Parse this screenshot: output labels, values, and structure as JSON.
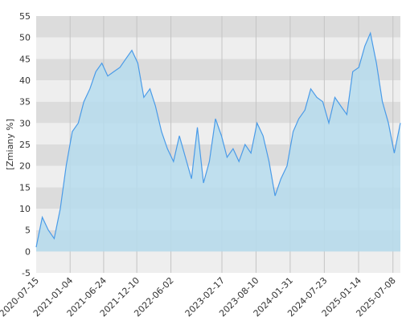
{
  "chart_data": {
    "type": "area",
    "ylabel": "[Zmiany %]",
    "ylim": [
      -5,
      55
    ],
    "y_ticks": [
      -5,
      0,
      5,
      10,
      15,
      20,
      25,
      30,
      35,
      40,
      45,
      50,
      55
    ],
    "x_tick_labels": [
      "2020-07-15",
      "2021-01-04",
      "2021-06-24",
      "2021-12-10",
      "2022-06-02",
      "2023-02-17",
      "2023-08-10",
      "2024-01-31",
      "2024-07-23",
      "2025-01-14",
      "2025-07-08"
    ],
    "grid": true,
    "colors": {
      "line": "#4a9be8",
      "area": "#b6dced",
      "band_dark": "#dcdcdc",
      "band_light": "#eeeeee"
    },
    "series": [
      {
        "x": [
          "2020-07-15",
          "2020-08-15",
          "2020-09-15",
          "2020-10-15",
          "2020-11-15",
          "2020-12-15",
          "2021-01-15",
          "2021-02-15",
          "2021-03-15",
          "2021-04-15",
          "2021-05-15",
          "2021-06-15",
          "2021-07-15",
          "2021-08-15",
          "2021-09-15",
          "2021-10-15",
          "2021-11-15",
          "2021-12-15",
          "2022-01-15",
          "2022-02-15",
          "2022-03-15",
          "2022-04-15",
          "2022-05-15",
          "2022-06-15",
          "2022-07-15",
          "2022-08-15",
          "2022-09-15",
          "2022-10-15",
          "2022-11-15",
          "2022-12-15",
          "2023-01-15",
          "2023-02-15",
          "2023-03-15",
          "2023-04-15",
          "2023-05-15",
          "2023-06-15",
          "2023-07-15",
          "2023-08-15",
          "2023-09-15",
          "2023-10-15",
          "2023-11-15",
          "2023-12-15",
          "2024-01-15",
          "2024-02-15",
          "2024-03-15",
          "2024-04-15",
          "2024-05-15",
          "2024-06-15",
          "2024-07-15",
          "2024-08-15",
          "2024-09-15",
          "2024-10-15",
          "2024-11-15",
          "2024-12-15",
          "2025-01-15",
          "2025-02-15",
          "2025-03-15",
          "2025-04-15",
          "2025-05-15",
          "2025-06-15",
          "2025-07-15",
          "2025-08-15"
        ],
        "values": [
          1,
          8,
          5,
          3,
          10,
          20,
          28,
          30,
          35,
          38,
          42,
          44,
          41,
          42,
          43,
          45,
          47,
          44,
          36,
          38,
          34,
          28,
          24,
          21,
          27,
          22,
          17,
          29,
          16,
          21,
          31,
          27,
          22,
          24,
          21,
          25,
          23,
          30,
          27,
          21,
          13,
          17,
          20,
          28,
          31,
          33,
          38,
          36,
          35,
          30,
          36,
          34,
          32,
          42,
          43,
          48,
          51,
          44,
          35,
          30,
          23,
          30
        ]
      }
    ]
  }
}
